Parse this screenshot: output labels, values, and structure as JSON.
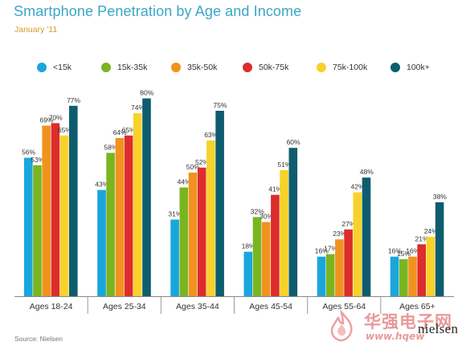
{
  "header": {
    "title": "Smartphone Penetration by Age and Income",
    "subtitle": "January '11"
  },
  "footer": {
    "source": "Source: Nielsen",
    "logo_text": "nielsen"
  },
  "watermark": {
    "text": "华强电子网",
    "url": "www.hqew"
  },
  "chart_data": {
    "type": "bar",
    "categories": [
      "Ages 18-24",
      "Ages 25-34",
      "Ages 35-44",
      "Ages 45-54",
      "Ages 55-64",
      "Ages 65+"
    ],
    "series": [
      {
        "name": "<15k",
        "color": "#1aa6dd",
        "values": [
          56,
          43,
          31,
          18,
          16,
          16
        ]
      },
      {
        "name": "15k-35k",
        "color": "#7ab520",
        "values": [
          53,
          58,
          44,
          32,
          17,
          15
        ]
      },
      {
        "name": "35k-50k",
        "color": "#f0931e",
        "values": [
          69,
          64,
          50,
          30,
          23,
          16
        ]
      },
      {
        "name": "50k-75k",
        "color": "#dd2c2c",
        "values": [
          70,
          65,
          52,
          41,
          27,
          21
        ]
      },
      {
        "name": "75k-100k",
        "color": "#f8d22a",
        "values": [
          65,
          74,
          63,
          51,
          42,
          24
        ]
      },
      {
        "name": "100k+",
        "color": "#0e5d6e",
        "values": [
          77,
          80,
          75,
          60,
          48,
          38
        ]
      }
    ],
    "value_suffix": "%",
    "ylim": [
      0,
      100
    ],
    "legend_position": "top",
    "grid": false
  }
}
